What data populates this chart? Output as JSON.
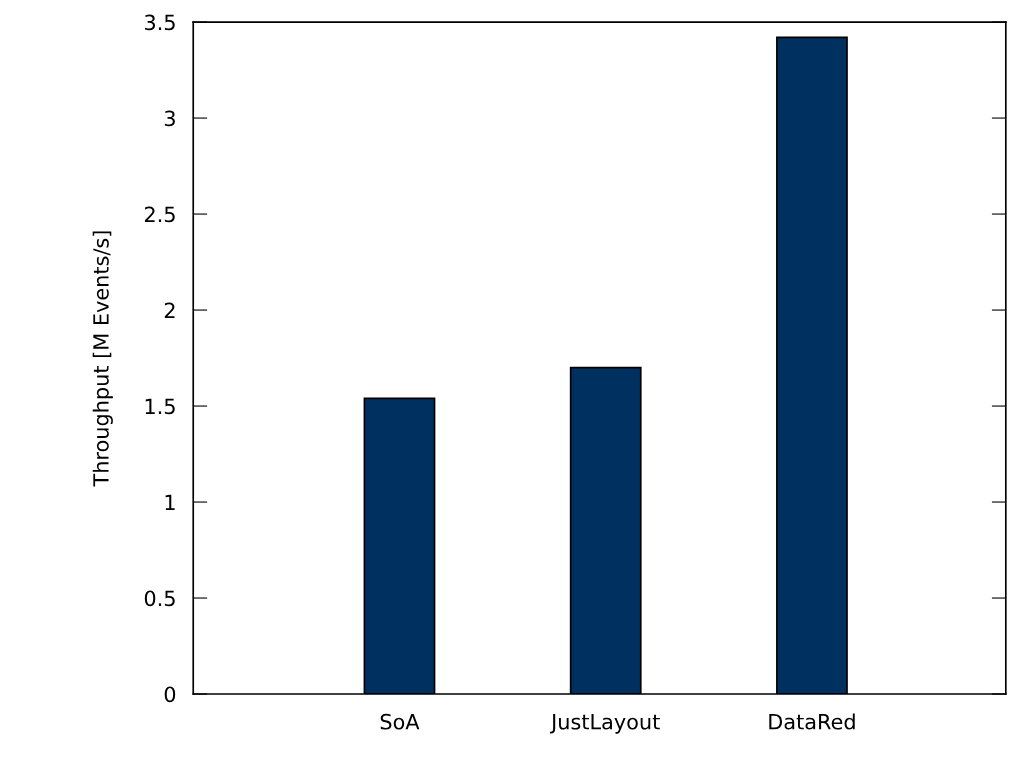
{
  "chart_data": {
    "type": "bar",
    "ylabel": "Throughput [M Events/s]",
    "categories": [
      "SoA",
      "JustLayout",
      "DataRed"
    ],
    "values": [
      1.54,
      1.7,
      3.42
    ],
    "color": "#003060",
    "ylim": [
      0,
      3.5
    ],
    "yticks": [
      0,
      0.5,
      1,
      1.5,
      2,
      2.5,
      3,
      3.5
    ],
    "grid": false,
    "legend": false
  }
}
